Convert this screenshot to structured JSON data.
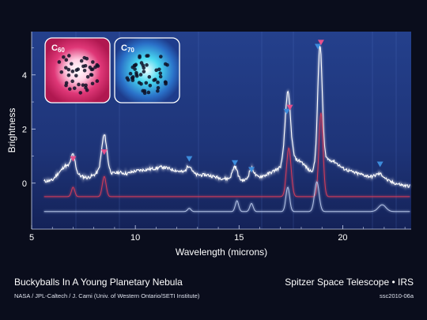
{
  "chart_data": {
    "type": "line",
    "title": "Buckyballs In A Young Planetary Nebula",
    "xlabel": "Wavelength (microns)",
    "ylabel": "Brightness",
    "xlim": [
      5,
      23.3
    ],
    "ylim": [
      -1.7,
      5.6
    ],
    "x_ticks": [
      5,
      10,
      15,
      20
    ],
    "y_ticks": [
      0,
      2,
      4
    ],
    "x_tick_labels": [
      "5",
      "10",
      "15",
      "20"
    ],
    "y_tick_labels": [
      "0",
      "2",
      "4"
    ],
    "grid": false,
    "series": [
      {
        "color": "#ffffff",
        "x": [
          5.0,
          5.5,
          6.0,
          6.2,
          6.4,
          6.6,
          6.8,
          7.0,
          7.2,
          7.4,
          7.7,
          8.0,
          8.3,
          8.6,
          8.9,
          9.2,
          9.6,
          10.0,
          10.5,
          11.0,
          11.3,
          11.8,
          12.3,
          12.6,
          13.0,
          13.5,
          14.0,
          14.5,
          15.0,
          15.4,
          15.8,
          16.3,
          16.8,
          17.1,
          17.6,
          18.0,
          18.4,
          18.8,
          19.2,
          19.6,
          20.0,
          20.5,
          21.0,
          21.5,
          22.0,
          22.5,
          23.0
        ],
        "y": [
          0.05,
          0.06,
          0.1,
          0.3,
          0.45,
          0.65,
          0.6,
          0.45,
          0.35,
          0.25,
          0.2,
          0.3,
          0.45,
          0.5,
          0.35,
          0.4,
          0.35,
          0.45,
          0.5,
          0.55,
          0.6,
          0.5,
          0.4,
          0.35,
          0.3,
          0.3,
          0.2,
          0.15,
          0.1,
          0.1,
          0.2,
          0.3,
          0.5,
          0.6,
          0.9,
          0.8,
          0.45,
          0.5,
          0.9,
          0.8,
          0.55,
          0.4,
          0.3,
          0.2,
          0.1,
          0.0,
          -0.1
        ],
        "peaks": [
          {
            "x": 7.0,
            "y": 0.6,
            "w": 0.1
          },
          {
            "x": 8.5,
            "y": 1.3,
            "w": 0.12
          },
          {
            "x": 12.6,
            "y": 0.3,
            "w": 0.12
          },
          {
            "x": 14.8,
            "y": 0.5,
            "w": 0.12
          },
          {
            "x": 15.6,
            "y": 0.4,
            "w": 0.12
          },
          {
            "x": 17.35,
            "y": 2.6,
            "w": 0.13
          },
          {
            "x": 18.9,
            "y": 4.5,
            "w": 0.11
          },
          {
            "x": 21.8,
            "y": 0.2,
            "w": 0.2
          }
        ]
      },
      {
        "color": "#d23c5a",
        "baseline": -0.5,
        "x": [
          5.0,
          23.3
        ],
        "y": [
          -0.5,
          -0.5
        ],
        "peaks": [
          {
            "x": 7.0,
            "y": 0.35,
            "w": 0.08
          },
          {
            "x": 8.5,
            "y": 0.75,
            "w": 0.09
          },
          {
            "x": 17.4,
            "y": 1.8,
            "w": 0.11
          },
          {
            "x": 18.95,
            "y": 3.1,
            "w": 0.1
          }
        ]
      },
      {
        "color": "#b3c3e6",
        "baseline": -1.05,
        "x": [
          5.0,
          23.3
        ],
        "y": [
          -1.05,
          -1.05
        ],
        "peaks": [
          {
            "x": 12.6,
            "y": 0.12,
            "w": 0.08
          },
          {
            "x": 14.9,
            "y": 0.4,
            "w": 0.08
          },
          {
            "x": 15.6,
            "y": 0.3,
            "w": 0.08
          },
          {
            "x": 17.35,
            "y": 0.9,
            "w": 0.09
          },
          {
            "x": 18.75,
            "y": 1.1,
            "w": 0.11
          },
          {
            "x": 21.9,
            "y": 0.25,
            "w": 0.18
          }
        ]
      }
    ],
    "markers": [
      {
        "x": 7.0,
        "y": 0.85,
        "color": "#e6508c"
      },
      {
        "x": 8.5,
        "y": 1.1,
        "color": "#e6508c"
      },
      {
        "x": 12.6,
        "y": 0.85,
        "color": "#3c8cdc"
      },
      {
        "x": 14.8,
        "y": 0.7,
        "color": "#3c8cdc"
      },
      {
        "x": 15.6,
        "y": 0.45,
        "color": "#3c8cdc"
      },
      {
        "x": 17.3,
        "y": 2.6,
        "color": "#3c8cdc"
      },
      {
        "x": 17.45,
        "y": 2.75,
        "color": "#e6508c"
      },
      {
        "x": 18.8,
        "y": 5.0,
        "color": "#3c8cdc"
      },
      {
        "x": 18.95,
        "y": 5.15,
        "color": "#e6508c"
      },
      {
        "x": 21.8,
        "y": 0.65,
        "color": "#3c8cdc"
      }
    ]
  },
  "insets": [
    {
      "label_base": "C",
      "label_sub": "60",
      "color": "#e03878"
    },
    {
      "label_base": "C",
      "label_sub": "70",
      "color": "#48d8f0"
    }
  ],
  "footer": {
    "title": "Buckyballs In A Young Planetary Nebula",
    "credit": "NASA / JPL-Caltech / J. Cami (Univ. of Western Ontario/SETI Institute)",
    "mission": "Spitzer Space Telescope • IRS",
    "image_id": "ssc2010-06a"
  }
}
